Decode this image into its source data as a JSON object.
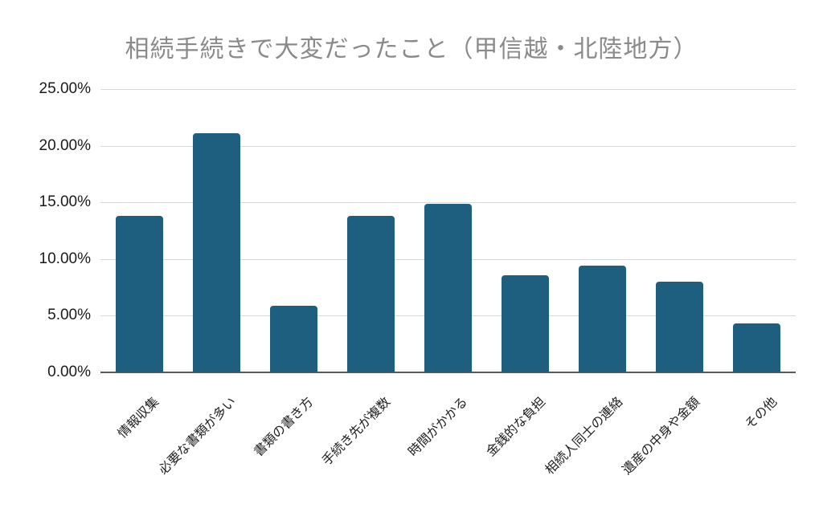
{
  "chart_data": {
    "type": "bar",
    "title": "相続手続きで大変だったこと（甲信越・北陸地方）",
    "categories": [
      "情報収集",
      "必要な書類が多い",
      "書類の書き方",
      "手続き先が複数",
      "時間がかかる",
      "金銭的な負担",
      "相続人同士の連絡",
      "遺産の中身や金額",
      "その他"
    ],
    "values": [
      13.8,
      21.1,
      5.9,
      13.8,
      14.9,
      8.6,
      9.4,
      8.0,
      4.3
    ],
    "unit": "%",
    "xlabel": "",
    "ylabel": "",
    "ylim": [
      0,
      25
    ],
    "ytick_step": 5,
    "ytick_labels": [
      "0.00%",
      "5.00%",
      "10.00%",
      "15.00%",
      "20.00%",
      "25.00%"
    ],
    "grid": true,
    "legend_position": "none",
    "bar_color": "#1e5e7e",
    "gridline_color": "#d9d9d9",
    "axis_line_color": "#595959",
    "title_color": "#8a8a8a",
    "tick_label_color": "#1a1a1a"
  }
}
